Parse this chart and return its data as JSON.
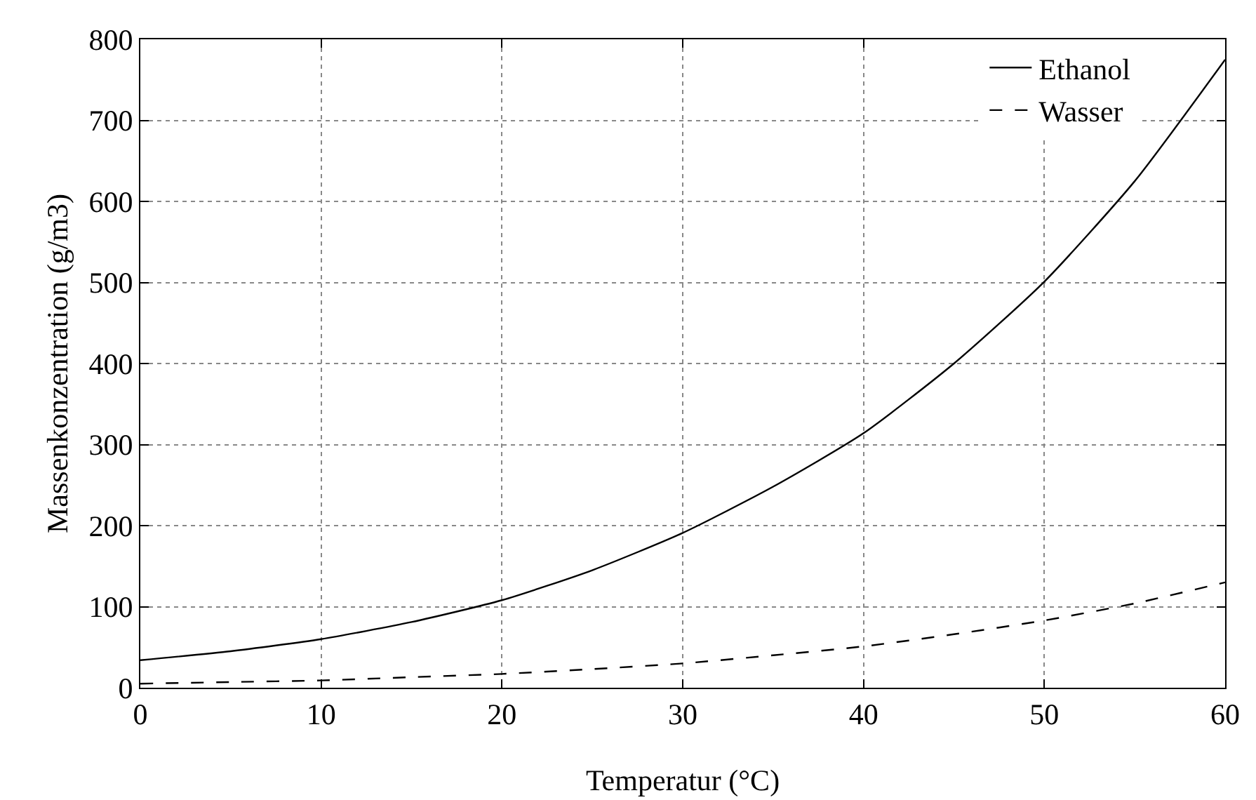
{
  "chart_data": {
    "type": "line",
    "xlabel": "Temperatur (°C)",
    "ylabel": "Massenkonzentration (g/m3)",
    "x": [
      0,
      5,
      10,
      15,
      20,
      25,
      30,
      35,
      40,
      45,
      50,
      55,
      60
    ],
    "series": [
      {
        "name": "Ethanol",
        "color": "#000000",
        "line_style": "solid",
        "values": [
          34,
          45,
          60,
          81,
          108,
          145,
          191,
          248,
          314,
          400,
          501,
          625,
          775
        ]
      },
      {
        "name": "Wasser",
        "color": "#000000",
        "line_style": "dashed",
        "values": [
          5,
          7,
          9,
          13,
          17,
          23,
          30,
          40,
          51,
          66,
          83,
          104,
          130
        ]
      }
    ],
    "xlim": [
      0,
      60
    ],
    "xticks": [
      0,
      10,
      20,
      30,
      40,
      50,
      60
    ],
    "ylim": [
      0,
      800
    ],
    "yticks": [
      0,
      100,
      200,
      300,
      400,
      500,
      600,
      700,
      800
    ],
    "grid": true,
    "legend": "top right",
    "marker": "none"
  }
}
